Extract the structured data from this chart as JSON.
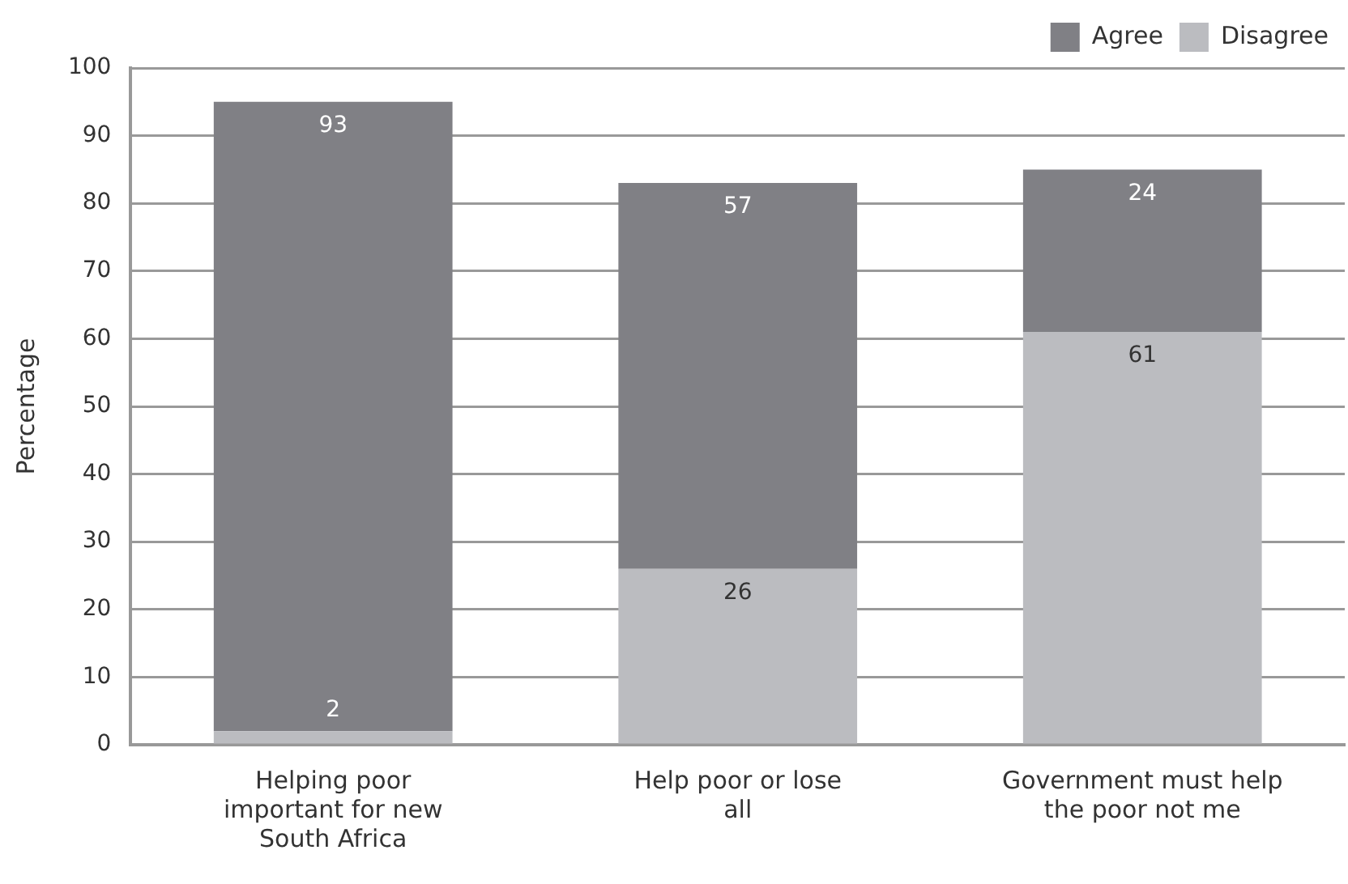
{
  "chart_data": {
    "type": "bar",
    "ylabel": "Percentage",
    "categories": [
      "Helping poor important for new South Africa",
      "Help poor or lose all",
      "Government must help the poor not me"
    ],
    "series": [
      {
        "name": "Disagree",
        "color": "#bbbcc0",
        "values": [
          2,
          26,
          61
        ]
      },
      {
        "name": "Agree",
        "color": "#808085",
        "values": [
          93,
          57,
          24
        ]
      }
    ],
    "stacked": true,
    "data_labels": true,
    "ylim": [
      0,
      100
    ],
    "yticks": [
      0,
      10,
      20,
      30,
      40,
      50,
      60,
      70,
      80,
      90,
      100
    ],
    "grid": "y",
    "legend": "top right"
  }
}
